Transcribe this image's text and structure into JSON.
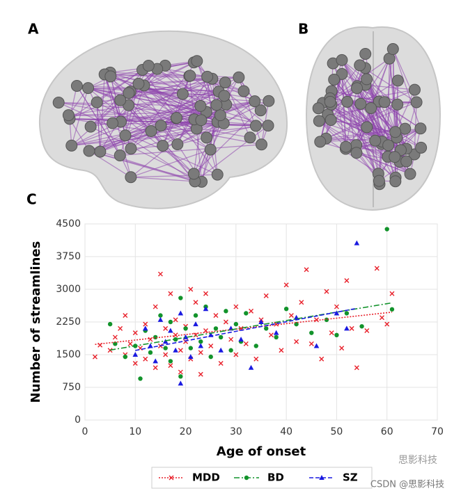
{
  "panel_labels": [
    "A",
    "B",
    "C"
  ],
  "watermark": {
    "logo": "思影科技",
    "text": "CSDN @思影科技"
  },
  "chart_data": {
    "type": "scatter",
    "xlabel": "Age of onset",
    "ylabel": "Number of streamlines",
    "xlim": [
      0,
      70
    ],
    "xticks": [
      0,
      10,
      20,
      30,
      40,
      50,
      60,
      70
    ],
    "ylim": [
      0,
      4500
    ],
    "yticks": [
      0,
      750,
      1500,
      2250,
      3000,
      3750,
      4500
    ],
    "grid": true,
    "legend": "bottom",
    "series": [
      {
        "name": "MDD",
        "color": "#e8202a",
        "marker": "x",
        "x": [
          2,
          3,
          5,
          6,
          7,
          8,
          8,
          9,
          10,
          10,
          11,
          12,
          12,
          13,
          14,
          14,
          15,
          15,
          16,
          16,
          17,
          17,
          18,
          18,
          19,
          19,
          20,
          20,
          21,
          21,
          22,
          22,
          23,
          23,
          24,
          24,
          25,
          26,
          27,
          28,
          29,
          30,
          30,
          31,
          32,
          33,
          34,
          35,
          36,
          37,
          38,
          39,
          40,
          41,
          42,
          43,
          44,
          45,
          46,
          47,
          48,
          49,
          50,
          51,
          52,
          53,
          54,
          56,
          58,
          59,
          60,
          61
        ],
        "values": [
          1450,
          1720,
          1600,
          1900,
          2100,
          1500,
          2400,
          1750,
          1300,
          2000,
          1650,
          2200,
          1400,
          1850,
          2600,
          1200,
          3350,
          1700,
          2100,
          1500,
          2900,
          1250,
          1950,
          2300,
          1600,
          1100,
          2150,
          1800,
          3000,
          1400,
          1950,
          2700,
          1550,
          1050,
          2050,
          2900,
          1700,
          2400,
          1300,
          2250,
          1850,
          2600,
          1500,
          2100,
          1750,
          2500,
          1400,
          2300,
          2850,
          1950,
          2200,
          1600,
          3100,
          2400,
          1800,
          2700,
          3450,
          1750,
          2300,
          1400,
          2950,
          2000,
          2600,
          1650,
          3200,
          2100,
          1200,
          2050,
          3480,
          2350,
          2200,
          2900
        ]
      },
      {
        "name": "BD",
        "color": "#12932b",
        "marker": "circle",
        "x": [
          5,
          6,
          8,
          10,
          11,
          12,
          13,
          14,
          15,
          16,
          17,
          17,
          18,
          19,
          19,
          20,
          21,
          22,
          23,
          24,
          25,
          26,
          27,
          28,
          29,
          30,
          31,
          32,
          34,
          36,
          38,
          40,
          42,
          45,
          48,
          50,
          52,
          55,
          60,
          61
        ],
        "values": [
          2200,
          1750,
          1450,
          1700,
          950,
          2050,
          1550,
          1900,
          2400,
          1650,
          2250,
          1350,
          1850,
          2800,
          1000,
          2100,
          1650,
          2400,
          1800,
          2600,
          1450,
          2100,
          1900,
          2500,
          1600,
          2200,
          1800,
          2450,
          1700,
          2100,
          1900,
          2550,
          2200,
          2000,
          2300,
          1950,
          2450,
          2150,
          4380,
          2540
        ]
      },
      {
        "name": "SZ",
        "color": "#1a1ae0",
        "marker": "triangle",
        "x": [
          10,
          12,
          13,
          14,
          15,
          16,
          17,
          18,
          19,
          19,
          20,
          21,
          22,
          23,
          24,
          25,
          27,
          29,
          31,
          33,
          35,
          38,
          42,
          46,
          50,
          52,
          54
        ],
        "values": [
          1500,
          2100,
          1700,
          1350,
          2300,
          1800,
          2050,
          1600,
          840,
          2450,
          1900,
          1450,
          2200,
          1700,
          2550,
          1950,
          1600,
          2100,
          1850,
          1200,
          2250,
          2000,
          2350,
          1700,
          2450,
          2100,
          4060
        ]
      }
    ]
  }
}
